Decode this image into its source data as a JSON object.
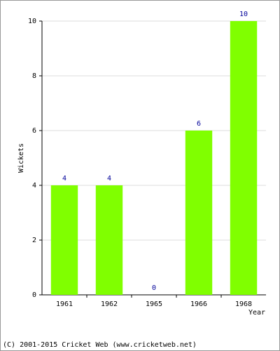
{
  "chart_data": {
    "type": "bar",
    "categories": [
      "1961",
      "1962",
      "1965",
      "1966",
      "1968"
    ],
    "values": [
      4,
      4,
      0,
      6,
      10
    ],
    "color": "#80ff00",
    "value_label_color": "#000099",
    "ylim": [
      0,
      10
    ],
    "yticks": [
      0,
      2,
      4,
      6,
      8,
      10
    ],
    "grid": true,
    "xlabel": "Year",
    "ylabel": "Wickets",
    "footer": "(C) 2001-2015 Cricket Web (www.cricketweb.net)"
  }
}
